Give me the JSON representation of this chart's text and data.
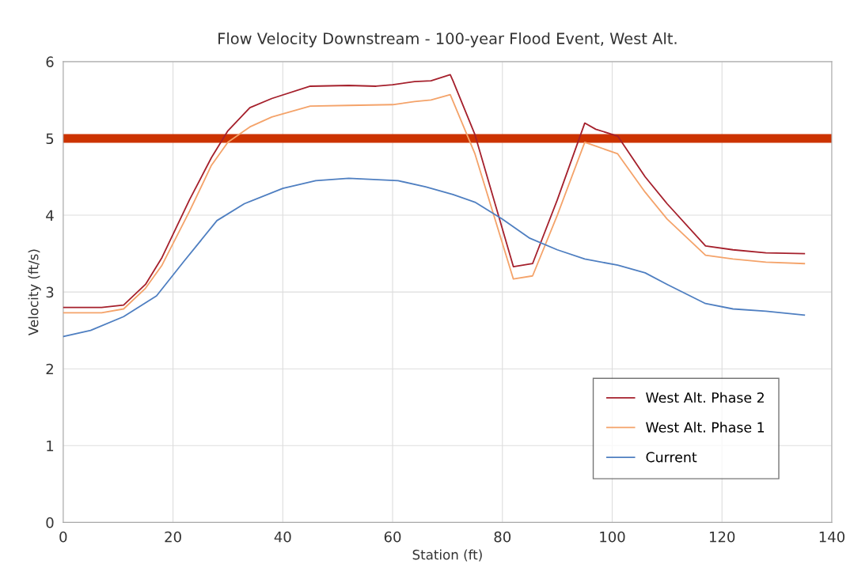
{
  "chart_data": {
    "type": "line",
    "title": "Flow Velocity Downstream - 100-year Flood Event, West Alt.",
    "xlabel": "Station (ft)",
    "ylabel": "Velocity (ft/s)",
    "xlim": [
      0,
      140
    ],
    "xticks": [
      0,
      20,
      40,
      60,
      80,
      100,
      120,
      140
    ],
    "ylim": [
      0,
      6
    ],
    "yticks": [
      0,
      1,
      2,
      3,
      4,
      5,
      6
    ],
    "grid": true,
    "legend": "bottom right",
    "marker": "none",
    "line_style": "solid",
    "ref_lines": [
      {
        "axis": "y",
        "value": 5,
        "color": "#cc3300"
      }
    ],
    "series": [
      {
        "name": "West Alt. Phase 2",
        "color": "#a5202c",
        "x": [
          0,
          7,
          11,
          15,
          18,
          23,
          27,
          30,
          34,
          38,
          45,
          52,
          57,
          60,
          64,
          67,
          70.5,
          71,
          75,
          82,
          85.5,
          90,
          95,
          97,
          101,
          106,
          110,
          117,
          122,
          128,
          135
        ],
        "values": [
          2.8,
          2.8,
          2.83,
          3.1,
          3.45,
          4.2,
          4.75,
          5.1,
          5.4,
          5.52,
          5.68,
          5.69,
          5.68,
          5.7,
          5.74,
          5.75,
          5.83,
          5.75,
          5.05,
          3.33,
          3.37,
          4.2,
          5.2,
          5.12,
          5.03,
          4.5,
          4.15,
          3.6,
          3.55,
          3.51,
          3.5
        ]
      },
      {
        "name": "West Alt. Phase 1",
        "color": "#f4a36a",
        "x": [
          0,
          7,
          11,
          15,
          18,
          23,
          27,
          30,
          34,
          38,
          45,
          52,
          60,
          64,
          67,
          70.5,
          75,
          82,
          85.5,
          90,
          95,
          97,
          101,
          106,
          110,
          117,
          122,
          128,
          135
        ],
        "values": [
          2.73,
          2.73,
          2.78,
          3.05,
          3.35,
          4.05,
          4.65,
          4.95,
          5.15,
          5.28,
          5.42,
          5.43,
          5.44,
          5.48,
          5.5,
          5.57,
          4.8,
          3.17,
          3.21,
          4.0,
          4.95,
          4.9,
          4.8,
          4.3,
          3.95,
          3.48,
          3.43,
          3.39,
          3.37
        ]
      },
      {
        "name": "Current",
        "color": "#4f7fc1",
        "x": [
          0,
          5,
          11,
          17,
          22,
          28,
          33,
          40,
          46,
          52,
          61,
          66,
          71,
          75,
          80,
          85,
          90,
          95,
          101,
          106,
          110,
          117,
          122,
          128,
          135
        ],
        "values": [
          2.42,
          2.5,
          2.68,
          2.95,
          3.4,
          3.93,
          4.15,
          4.35,
          4.45,
          4.48,
          4.45,
          4.37,
          4.27,
          4.17,
          3.95,
          3.7,
          3.55,
          3.43,
          3.35,
          3.25,
          3.1,
          2.85,
          2.78,
          2.75,
          2.7
        ]
      }
    ]
  }
}
